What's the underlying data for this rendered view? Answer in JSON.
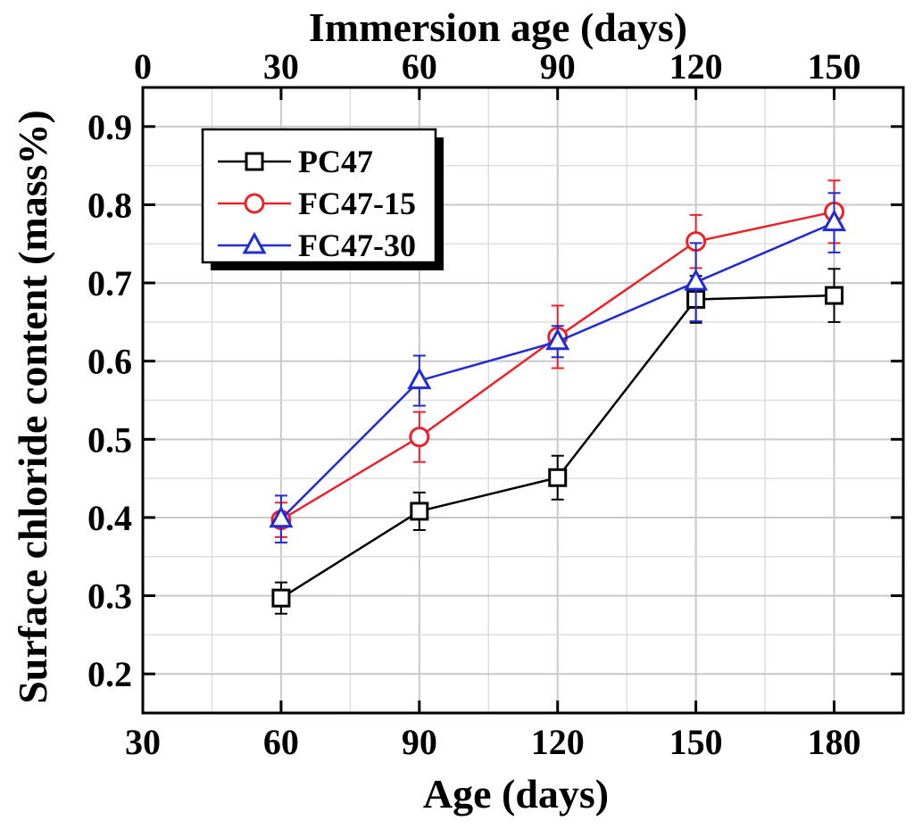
{
  "chart_data": {
    "type": "line",
    "xlabel": "Age (days)",
    "x2label": "Immersion age (days)",
    "ylabel": "Surface chloride content (mass%)",
    "xlim": [
      30,
      195
    ],
    "ylim": [
      0.15,
      0.95
    ],
    "x_ticks": [
      30,
      60,
      90,
      120,
      150,
      180
    ],
    "x2_ticks": [
      0,
      30,
      60,
      90,
      120,
      150
    ],
    "x2_offset": 30,
    "y_ticks": [
      0.2,
      0.3,
      0.4,
      0.5,
      0.6,
      0.7,
      0.8,
      0.9
    ],
    "grid": true,
    "legend_position": "top-left",
    "x": [
      60,
      90,
      120,
      150,
      180
    ],
    "series": [
      {
        "name": "PC47",
        "color": "#000000",
        "marker": "square",
        "values": [
          0.297,
          0.408,
          0.451,
          0.679,
          0.684
        ],
        "errors": [
          0.02,
          0.024,
          0.028,
          0.03,
          0.034
        ]
      },
      {
        "name": "FC47-15",
        "color": "#e8232a",
        "marker": "circle",
        "values": [
          0.397,
          0.503,
          0.631,
          0.753,
          0.791
        ],
        "errors": [
          0.022,
          0.032,
          0.04,
          0.034,
          0.04
        ]
      },
      {
        "name": "FC47-30",
        "color": "#1f2bd6",
        "marker": "triangle",
        "values": [
          0.398,
          0.575,
          0.625,
          0.701,
          0.777
        ],
        "errors": [
          0.03,
          0.032,
          0.02,
          0.05,
          0.038
        ]
      }
    ]
  }
}
